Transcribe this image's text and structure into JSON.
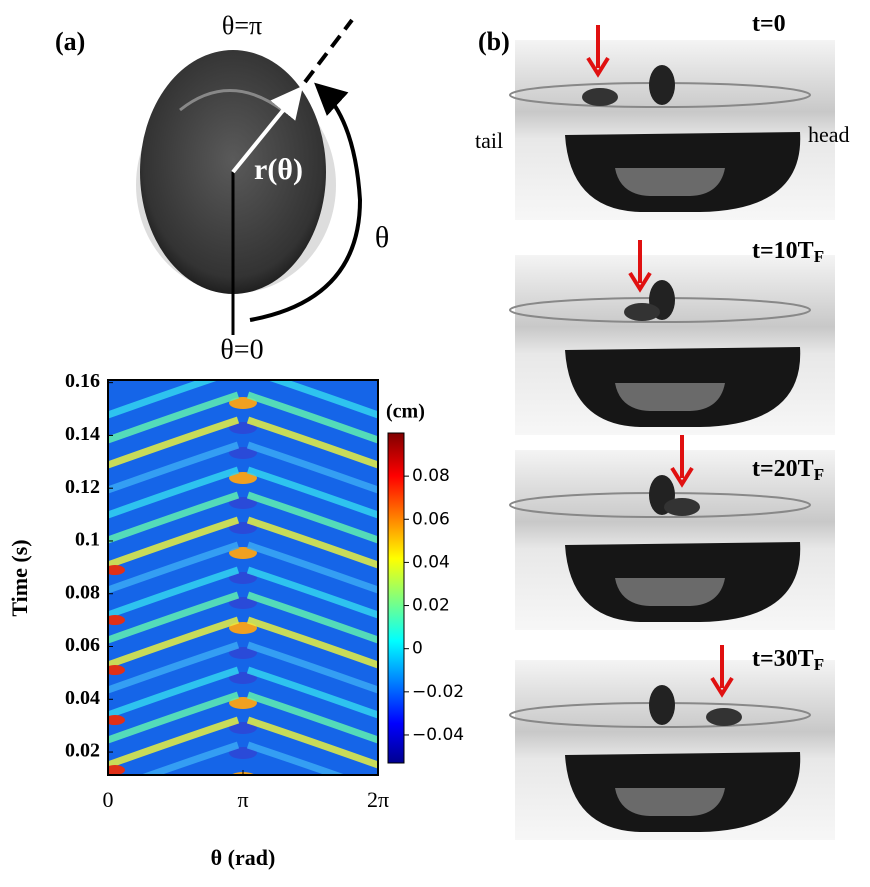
{
  "panel_a": {
    "label": "(a)",
    "theta_pi": "θ=π",
    "r_label": "r(θ)",
    "theta": "θ",
    "theta_zero": "θ=0"
  },
  "heatmap": {
    "ylabel": "Time (s)",
    "xlabel": "θ (rad)",
    "ylim": [
      0.0113,
      0.161
    ],
    "yticks": [
      0.02,
      0.04,
      0.06,
      0.08,
      0.1,
      0.12,
      0.14,
      0.16
    ],
    "xlim": [
      0,
      6.2832
    ],
    "xticks": [
      {
        "value": 0,
        "label": "0"
      },
      {
        "value": 3.1416,
        "label": "π"
      },
      {
        "value": 6.2832,
        "label": "2π"
      }
    ],
    "colorbar": {
      "unit": "(cm)",
      "lim": [
        -0.053,
        0.1
      ],
      "ticks": [
        0.08,
        0.06,
        0.04,
        0.02,
        0,
        {
          "value": -0.02,
          "label": "−0.02"
        },
        {
          "value": -0.04,
          "label": "−0.04"
        }
      ]
    }
  },
  "panel_b": {
    "label": "(b)",
    "tail": "tail",
    "head": "head",
    "frames": [
      {
        "time": "t=0"
      },
      {
        "time": "t=10T",
        "sub": "F"
      },
      {
        "time": "t=20T",
        "sub": "F"
      },
      {
        "time": "t=30T",
        "sub": "F"
      }
    ]
  }
}
